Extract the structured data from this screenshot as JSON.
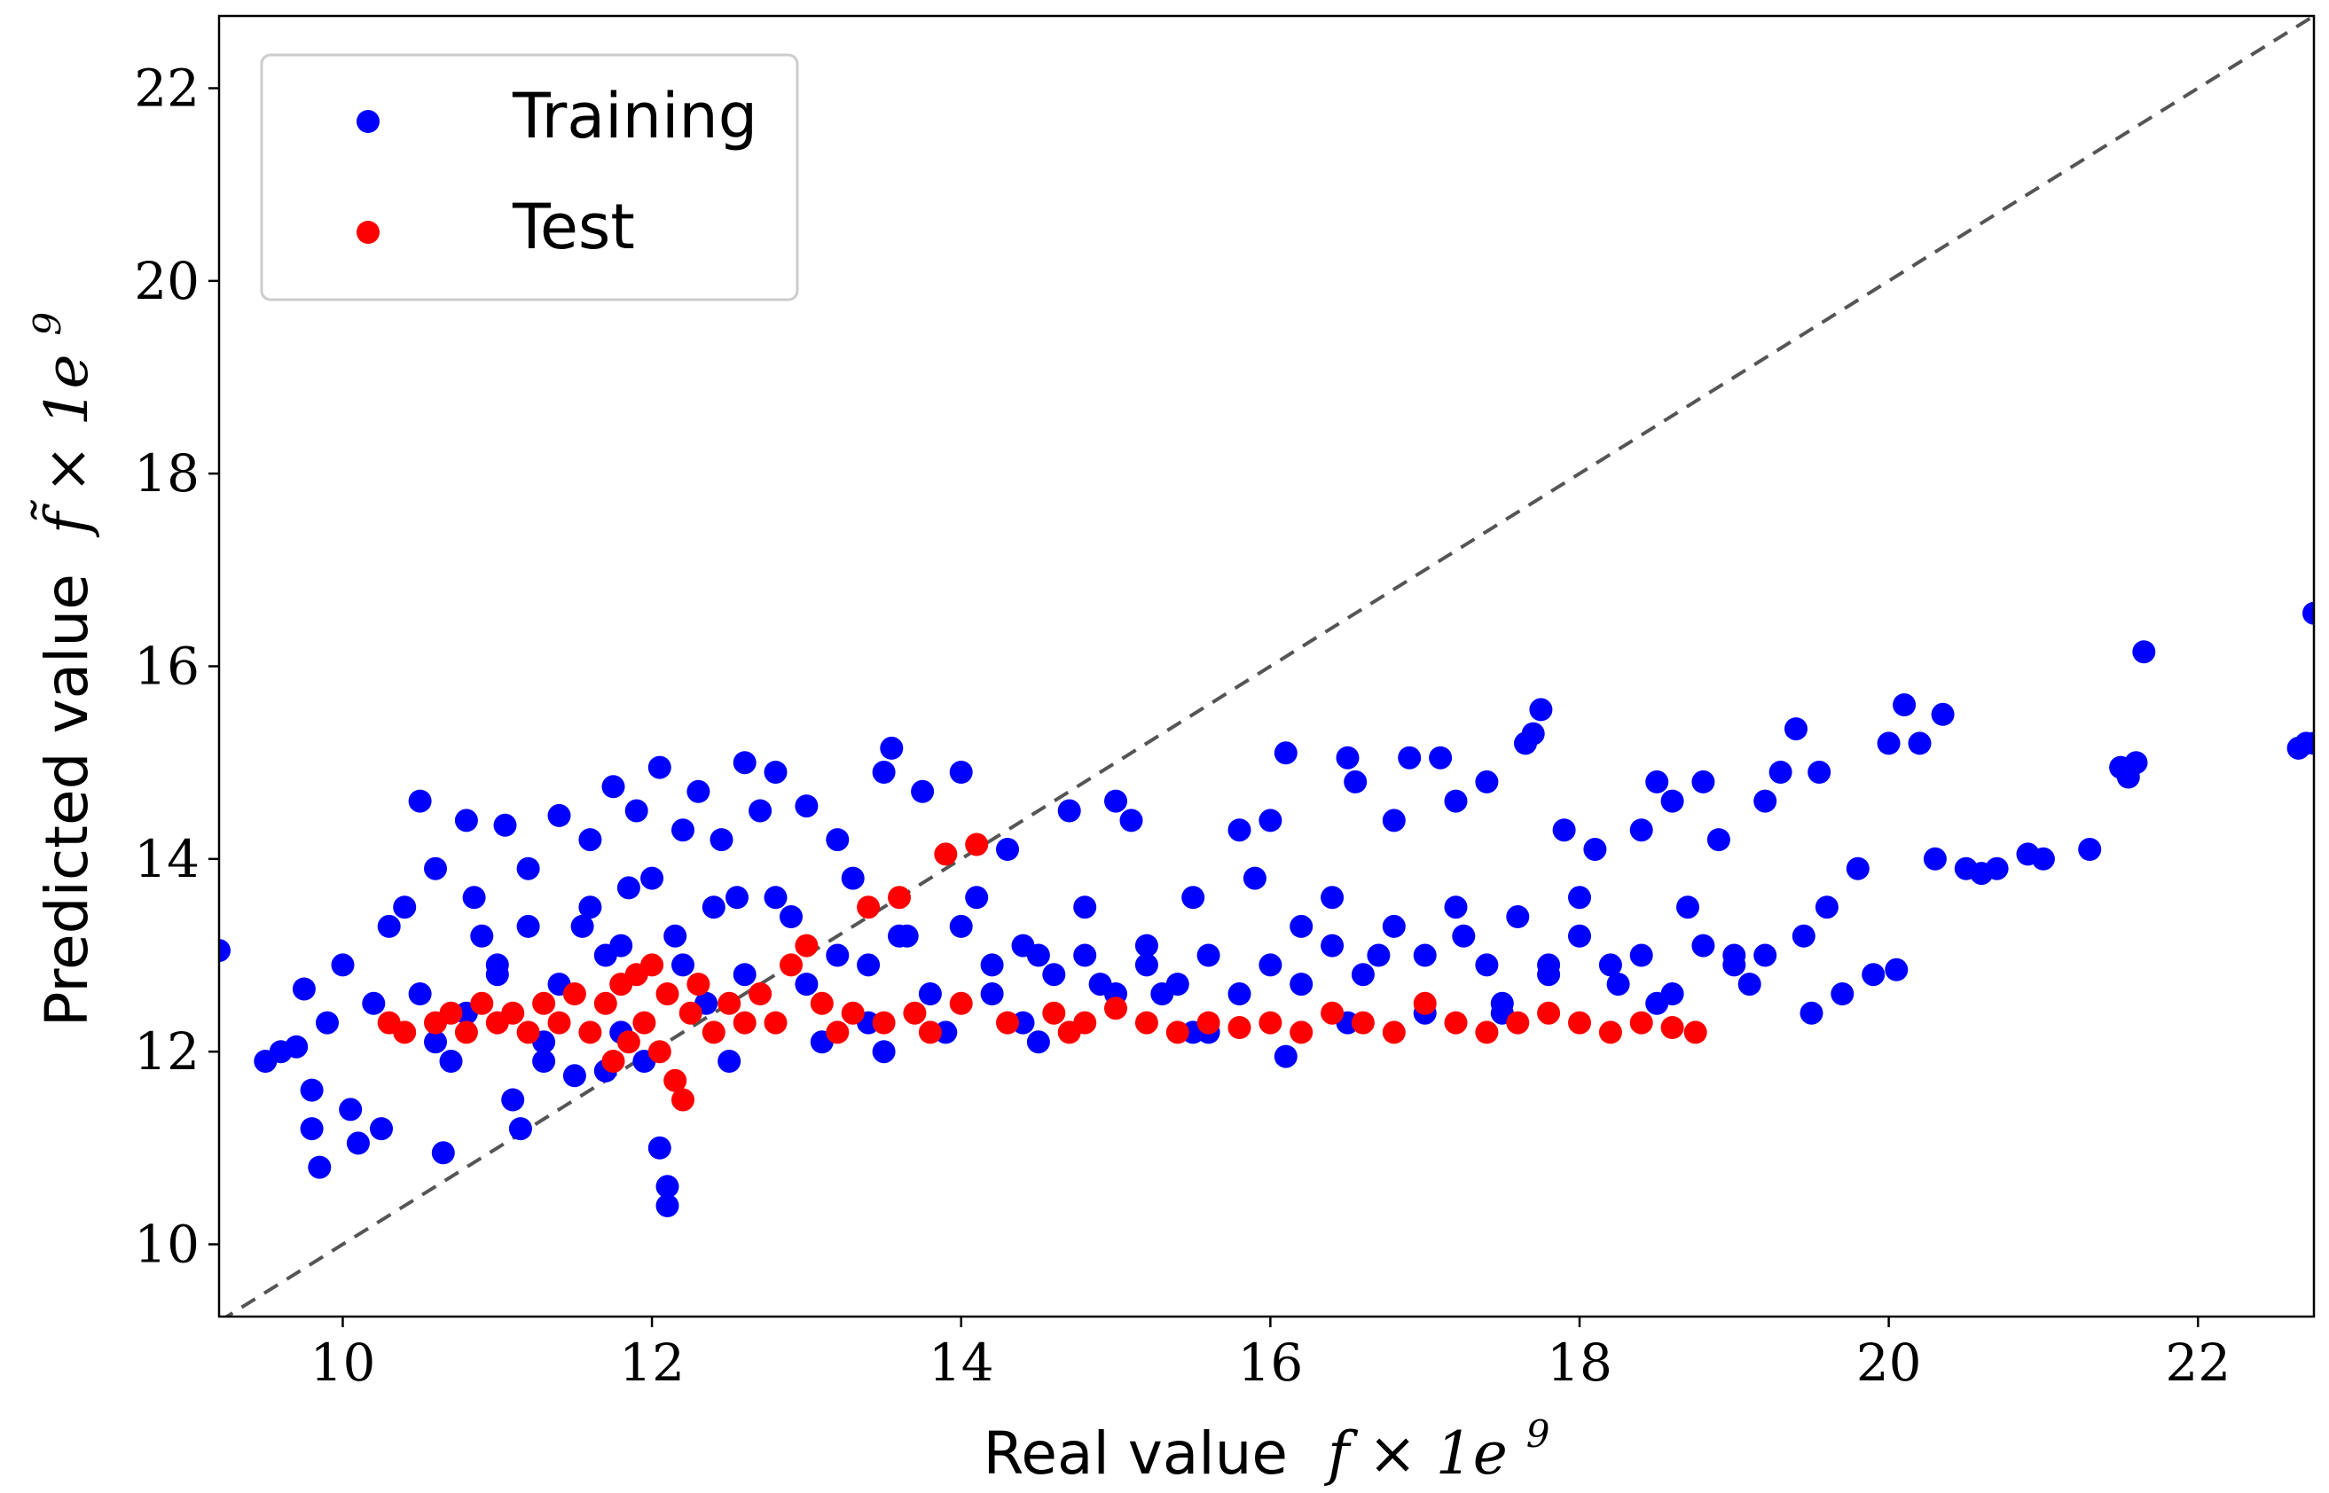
{
  "chart_data": {
    "type": "scatter",
    "title": "",
    "xlabel": {
      "text": "Real value",
      "math": "f × 1e",
      "sup": "9"
    },
    "ylabel": {
      "text": "Predicted value",
      "math": "f̃ × 1e",
      "sup": "9"
    },
    "xlim": [
      9.2,
      22.75
    ],
    "ylim": [
      9.25,
      22.75
    ],
    "xticks": [
      10,
      12,
      14,
      16,
      18,
      20,
      22
    ],
    "yticks": [
      10,
      12,
      14,
      16,
      18,
      20,
      22
    ],
    "grid": false,
    "legend": {
      "position": "top-left",
      "entries": [
        "Training",
        "Test"
      ]
    },
    "reference_line": {
      "style": "dashed",
      "color": "#555555",
      "from": [
        9.2,
        9.2
      ],
      "to": [
        22.75,
        22.75
      ]
    },
    "series": [
      {
        "name": "Training",
        "color": "#0000ff",
        "points": [
          [
            9.2,
            13.05
          ],
          [
            9.5,
            11.9
          ],
          [
            9.6,
            12.0
          ],
          [
            9.7,
            12.05
          ],
          [
            9.75,
            12.65
          ],
          [
            9.8,
            11.6
          ],
          [
            9.8,
            11.2
          ],
          [
            9.85,
            10.8
          ],
          [
            9.9,
            12.3
          ],
          [
            10.0,
            12.9
          ],
          [
            10.05,
            11.4
          ],
          [
            10.1,
            11.05
          ],
          [
            10.2,
            12.5
          ],
          [
            10.25,
            11.2
          ],
          [
            10.3,
            13.3
          ],
          [
            10.4,
            13.5
          ],
          [
            10.5,
            14.6
          ],
          [
            10.6,
            13.9
          ],
          [
            10.6,
            12.1
          ],
          [
            10.65,
            10.95
          ],
          [
            10.7,
            11.9
          ],
          [
            10.8,
            14.4
          ],
          [
            10.85,
            13.6
          ],
          [
            10.9,
            13.2
          ],
          [
            11.0,
            12.8
          ],
          [
            11.05,
            14.35
          ],
          [
            11.1,
            11.5
          ],
          [
            11.15,
            11.2
          ],
          [
            11.2,
            13.9
          ],
          [
            11.3,
            12.1
          ],
          [
            11.4,
            14.45
          ],
          [
            11.5,
            11.75
          ],
          [
            11.55,
            13.3
          ],
          [
            11.6,
            14.2
          ],
          [
            11.7,
            13.0
          ],
          [
            11.75,
            14.75
          ],
          [
            11.8,
            12.2
          ],
          [
            11.85,
            13.7
          ],
          [
            11.9,
            14.5
          ],
          [
            11.95,
            11.9
          ],
          [
            12.05,
            14.95
          ],
          [
            12.05,
            11.0
          ],
          [
            12.1,
            10.6
          ],
          [
            12.1,
            10.4
          ],
          [
            12.15,
            13.2
          ],
          [
            12.2,
            14.3
          ],
          [
            12.3,
            14.7
          ],
          [
            12.35,
            12.5
          ],
          [
            12.45,
            14.2
          ],
          [
            12.55,
            13.6
          ],
          [
            12.6,
            15.0
          ],
          [
            12.7,
            14.5
          ],
          [
            12.8,
            14.9
          ],
          [
            12.9,
            13.4
          ],
          [
            13.0,
            14.55
          ],
          [
            13.1,
            12.1
          ],
          [
            13.2,
            14.2
          ],
          [
            13.3,
            13.8
          ],
          [
            13.4,
            12.3
          ],
          [
            13.5,
            14.9
          ],
          [
            13.55,
            15.15
          ],
          [
            13.65,
            13.2
          ],
          [
            13.75,
            14.7
          ],
          [
            13.9,
            12.2
          ],
          [
            14.0,
            14.9
          ],
          [
            14.1,
            13.6
          ],
          [
            14.2,
            12.6
          ],
          [
            14.3,
            14.1
          ],
          [
            14.4,
            12.3
          ],
          [
            14.5,
            13.0
          ],
          [
            14.7,
            14.5
          ],
          [
            14.8,
            13.5
          ],
          [
            14.9,
            12.7
          ],
          [
            15.0,
            14.6
          ],
          [
            15.1,
            14.4
          ],
          [
            15.2,
            13.1
          ],
          [
            15.3,
            12.6
          ],
          [
            15.5,
            13.6
          ],
          [
            15.6,
            12.2
          ],
          [
            15.8,
            14.3
          ],
          [
            15.9,
            13.8
          ],
          [
            16.0,
            14.4
          ],
          [
            16.1,
            15.1
          ],
          [
            16.1,
            11.95
          ],
          [
            16.2,
            13.3
          ],
          [
            16.4,
            13.6
          ],
          [
            16.5,
            15.05
          ],
          [
            16.55,
            14.8
          ],
          [
            16.7,
            13.0
          ],
          [
            16.8,
            14.4
          ],
          [
            16.9,
            15.05
          ],
          [
            17.0,
            12.4
          ],
          [
            17.1,
            15.05
          ],
          [
            17.2,
            14.6
          ],
          [
            17.25,
            13.2
          ],
          [
            17.4,
            14.8
          ],
          [
            17.5,
            12.5
          ],
          [
            17.65,
            15.2
          ],
          [
            17.7,
            15.3
          ],
          [
            17.75,
            15.55
          ],
          [
            17.8,
            12.9
          ],
          [
            17.9,
            14.3
          ],
          [
            18.0,
            13.6
          ],
          [
            18.1,
            14.1
          ],
          [
            18.25,
            12.7
          ],
          [
            18.4,
            14.3
          ],
          [
            18.5,
            14.8
          ],
          [
            18.6,
            14.6
          ],
          [
            18.7,
            13.5
          ],
          [
            18.8,
            14.8
          ],
          [
            18.9,
            14.2
          ],
          [
            19.0,
            13.0
          ],
          [
            19.1,
            12.7
          ],
          [
            19.2,
            14.6
          ],
          [
            19.3,
            14.9
          ],
          [
            19.4,
            15.35
          ],
          [
            19.45,
            13.2
          ],
          [
            19.5,
            12.4
          ],
          [
            19.55,
            14.9
          ],
          [
            19.6,
            13.5
          ],
          [
            19.7,
            12.6
          ],
          [
            19.8,
            13.9
          ],
          [
            19.9,
            12.8
          ],
          [
            20.0,
            15.2
          ],
          [
            20.05,
            12.85
          ],
          [
            20.1,
            15.6
          ],
          [
            20.2,
            15.2
          ],
          [
            20.3,
            14.0
          ],
          [
            20.35,
            15.5
          ],
          [
            20.5,
            13.9
          ],
          [
            20.6,
            13.85
          ],
          [
            20.7,
            13.9
          ],
          [
            20.9,
            14.05
          ],
          [
            21.0,
            14.0
          ],
          [
            21.3,
            14.1
          ],
          [
            21.5,
            14.95
          ],
          [
            21.55,
            14.85
          ],
          [
            21.6,
            15.0
          ],
          [
            21.65,
            16.15
          ],
          [
            22.65,
            15.15
          ],
          [
            22.7,
            15.2
          ],
          [
            22.75,
            15.2
          ],
          [
            22.75,
            16.55
          ],
          [
            10.5,
            12.6
          ],
          [
            10.8,
            12.4
          ],
          [
            11.0,
            12.9
          ],
          [
            11.2,
            13.3
          ],
          [
            11.4,
            12.7
          ],
          [
            11.6,
            13.5
          ],
          [
            11.8,
            13.1
          ],
          [
            12.0,
            13.8
          ],
          [
            12.2,
            12.9
          ],
          [
            12.4,
            13.5
          ],
          [
            12.6,
            12.8
          ],
          [
            12.8,
            13.6
          ],
          [
            13.0,
            12.7
          ],
          [
            13.2,
            13.0
          ],
          [
            13.4,
            12.9
          ],
          [
            13.6,
            13.2
          ],
          [
            13.8,
            12.6
          ],
          [
            14.0,
            13.3
          ],
          [
            14.2,
            12.9
          ],
          [
            14.4,
            13.1
          ],
          [
            14.6,
            12.8
          ],
          [
            14.8,
            13.0
          ],
          [
            15.0,
            12.6
          ],
          [
            15.2,
            12.9
          ],
          [
            15.4,
            12.7
          ],
          [
            15.6,
            13.0
          ],
          [
            15.8,
            12.6
          ],
          [
            16.0,
            12.9
          ],
          [
            16.2,
            12.7
          ],
          [
            16.4,
            13.1
          ],
          [
            16.6,
            12.8
          ],
          [
            16.8,
            13.3
          ],
          [
            17.0,
            13.0
          ],
          [
            17.2,
            13.5
          ],
          [
            17.4,
            12.9
          ],
          [
            17.6,
            13.4
          ],
          [
            17.8,
            12.8
          ],
          [
            18.0,
            13.2
          ],
          [
            18.2,
            12.9
          ],
          [
            18.4,
            13.0
          ],
          [
            18.6,
            12.6
          ],
          [
            18.8,
            13.1
          ],
          [
            19.0,
            12.9
          ],
          [
            19.2,
            13.0
          ],
          [
            11.3,
            11.9
          ],
          [
            11.7,
            11.8
          ],
          [
            12.5,
            11.9
          ],
          [
            13.5,
            12.0
          ],
          [
            14.5,
            12.1
          ],
          [
            15.5,
            12.2
          ],
          [
            16.5,
            12.3
          ],
          [
            17.5,
            12.4
          ],
          [
            18.5,
            12.5
          ]
        ]
      },
      {
        "name": "Test",
        "color": "#ff0000",
        "points": [
          [
            10.3,
            12.3
          ],
          [
            10.4,
            12.2
          ],
          [
            10.6,
            12.3
          ],
          [
            10.7,
            12.4
          ],
          [
            10.8,
            12.2
          ],
          [
            10.9,
            12.5
          ],
          [
            11.0,
            12.3
          ],
          [
            11.1,
            12.4
          ],
          [
            11.2,
            12.2
          ],
          [
            11.3,
            12.5
          ],
          [
            11.4,
            12.3
          ],
          [
            11.5,
            12.6
          ],
          [
            11.6,
            12.2
          ],
          [
            11.7,
            12.5
          ],
          [
            11.75,
            11.9
          ],
          [
            11.8,
            12.7
          ],
          [
            11.85,
            12.1
          ],
          [
            11.9,
            12.8
          ],
          [
            11.95,
            12.3
          ],
          [
            12.0,
            12.9
          ],
          [
            12.05,
            12.0
          ],
          [
            12.1,
            12.6
          ],
          [
            12.15,
            11.7
          ],
          [
            12.2,
            11.5
          ],
          [
            12.25,
            12.4
          ],
          [
            12.3,
            12.7
          ],
          [
            12.4,
            12.2
          ],
          [
            12.5,
            12.5
          ],
          [
            12.6,
            12.3
          ],
          [
            12.7,
            12.6
          ],
          [
            12.8,
            12.3
          ],
          [
            12.9,
            12.9
          ],
          [
            13.0,
            13.1
          ],
          [
            13.1,
            12.5
          ],
          [
            13.2,
            12.2
          ],
          [
            13.3,
            12.4
          ],
          [
            13.4,
            13.5
          ],
          [
            13.5,
            12.3
          ],
          [
            13.6,
            13.6
          ],
          [
            13.7,
            12.4
          ],
          [
            13.8,
            12.2
          ],
          [
            13.9,
            14.05
          ],
          [
            14.0,
            12.5
          ],
          [
            14.1,
            14.15
          ],
          [
            14.3,
            12.3
          ],
          [
            14.6,
            12.4
          ],
          [
            14.7,
            12.2
          ],
          [
            14.8,
            12.3
          ],
          [
            15.0,
            12.45
          ],
          [
            15.2,
            12.3
          ],
          [
            15.4,
            12.2
          ],
          [
            15.6,
            12.3
          ],
          [
            15.8,
            12.25
          ],
          [
            16.0,
            12.3
          ],
          [
            16.2,
            12.2
          ],
          [
            16.4,
            12.4
          ],
          [
            16.6,
            12.3
          ],
          [
            16.8,
            12.2
          ],
          [
            17.0,
            12.5
          ],
          [
            17.2,
            12.3
          ],
          [
            17.4,
            12.2
          ],
          [
            17.6,
            12.3
          ],
          [
            17.8,
            12.4
          ],
          [
            18.0,
            12.3
          ],
          [
            18.2,
            12.2
          ],
          [
            18.4,
            12.3
          ],
          [
            18.6,
            12.25
          ],
          [
            18.75,
            12.2
          ]
        ]
      }
    ]
  }
}
